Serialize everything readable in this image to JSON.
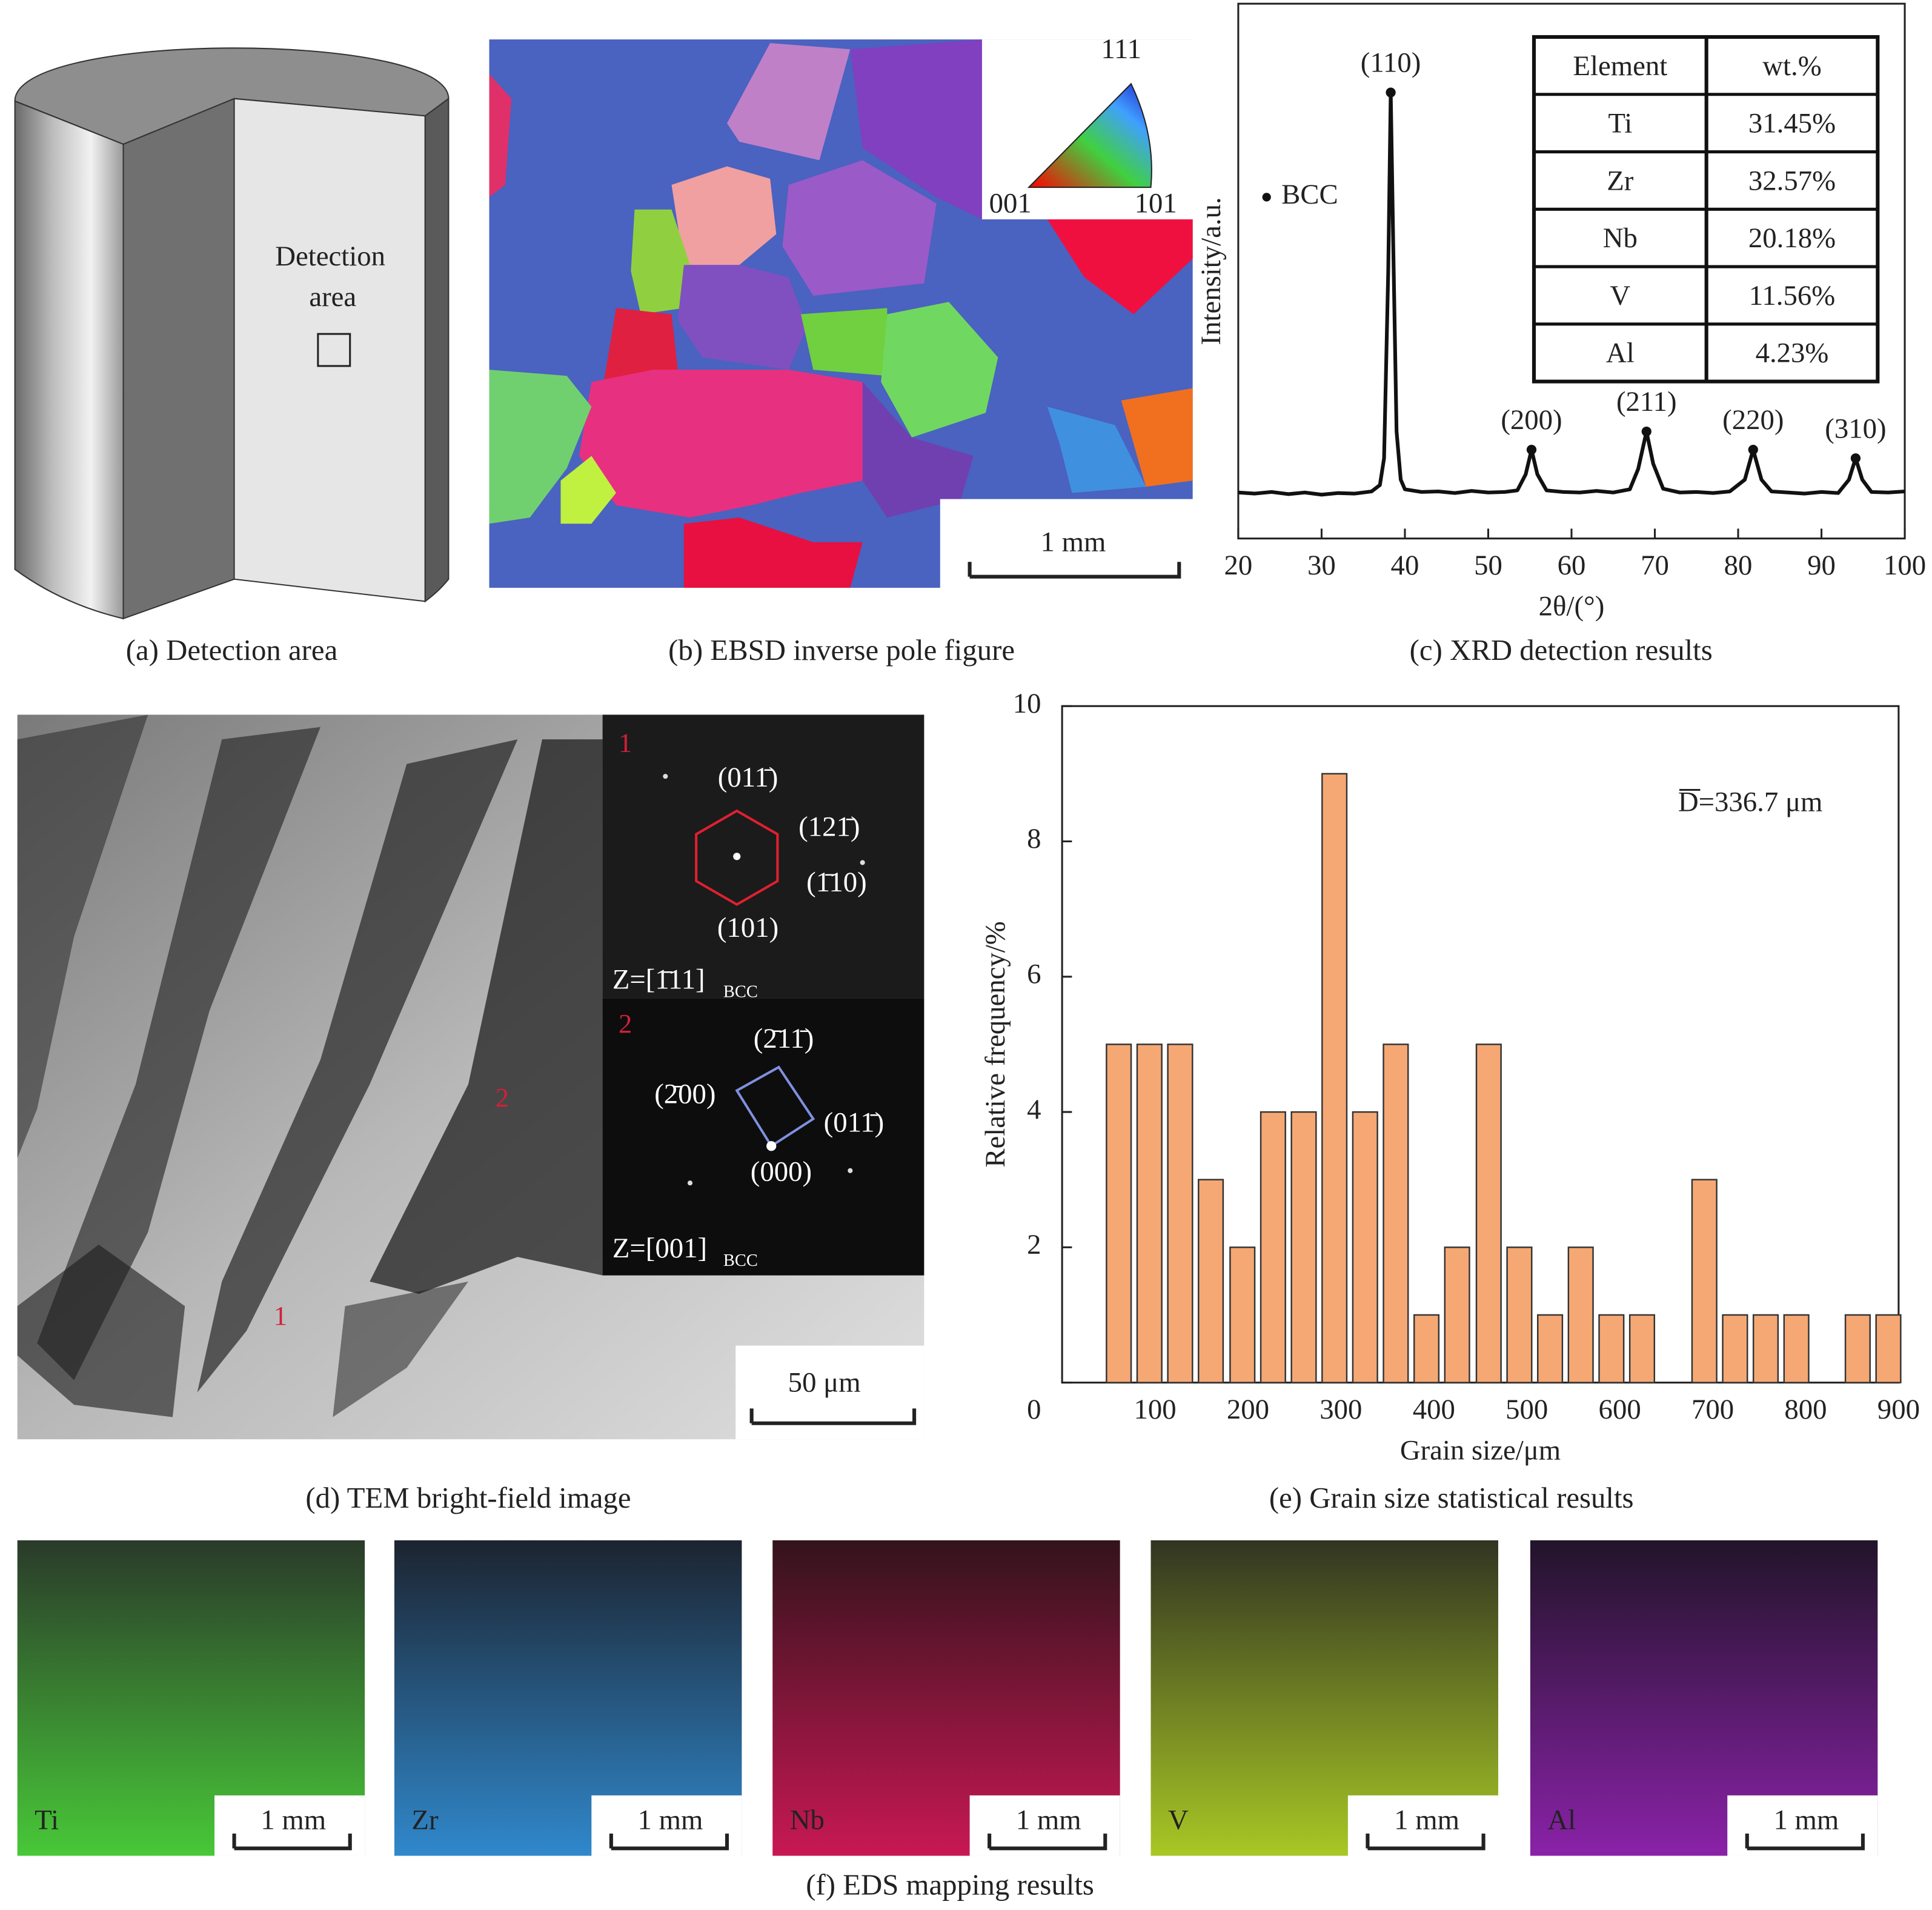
{
  "panel_a": {
    "caption": "(a) Detection area",
    "label_lines": [
      "Detection",
      "area"
    ]
  },
  "panel_b": {
    "caption": "(b) EBSD inverse pole figure",
    "legend": {
      "top": "111",
      "left": "001",
      "right": "101"
    },
    "scale_bar": "1 mm"
  },
  "panel_c_table": {
    "header": [
      "Element",
      "wt.%"
    ],
    "rows": [
      [
        "Ti",
        "31.45%"
      ],
      [
        "Zr",
        "32.57%"
      ],
      [
        "Nb",
        "20.18%"
      ],
      [
        "V",
        "11.56%"
      ],
      [
        "Al",
        "4.23%"
      ]
    ]
  },
  "panel_d": {
    "caption": "(d) TEM bright-field image",
    "image_labels": [
      "1",
      "2"
    ],
    "scale_bar": "50 μm",
    "saed": [
      {
        "number": "1",
        "spots": [
          "(011̄)",
          "(121̄)",
          "(1̄10)",
          "(101)"
        ],
        "zone": "Z=[1̄11]",
        "zone_subscript": "BCC"
      },
      {
        "number": "2",
        "spots": [
          "(2̄11̄)",
          "(2̄00)",
          "(011̄)",
          "(000)"
        ],
        "zone": "Z=[001]",
        "zone_subscript": "BCC"
      }
    ]
  },
  "panel_f": {
    "caption": "(f) EDS mapping results",
    "maps": [
      {
        "element": "Ti",
        "scale_bar": "1 mm"
      },
      {
        "element": "Zr",
        "scale_bar": "1 mm"
      },
      {
        "element": "Nb",
        "scale_bar": "1 mm"
      },
      {
        "element": "V",
        "scale_bar": "1 mm"
      },
      {
        "element": "Al",
        "scale_bar": "1 mm"
      }
    ]
  },
  "chart_data": [
    {
      "type": "line",
      "title": "(c) XRD detection results",
      "xlabel": "2θ/(°)",
      "ylabel": "Intensity/a.u.",
      "xlim": [
        20,
        100
      ],
      "xticks": [
        20,
        30,
        40,
        50,
        60,
        70,
        80,
        90,
        100
      ],
      "ylim": [
        0,
        100
      ],
      "x": [
        20,
        22,
        24,
        26,
        28,
        30,
        32,
        34,
        36,
        37,
        37.5,
        38,
        38.3,
        38.6,
        39,
        39.5,
        40,
        42,
        44,
        46,
        48,
        50,
        52,
        53.5,
        54.5,
        55.2,
        55.9,
        57,
        59,
        61,
        63,
        65,
        67,
        68,
        69,
        69.8,
        71,
        73,
        75,
        77,
        79,
        80.8,
        81.8,
        82.8,
        84,
        86,
        88,
        90,
        92,
        93.3,
        94.1,
        94.9,
        96,
        98,
        100
      ],
      "series": [
        {
          "name": "BCC",
          "color": "#111111",
          "values": [
            8.6,
            8.4,
            8.7,
            8.3,
            8.6,
            8.2,
            8.5,
            8.4,
            8.8,
            10,
            15,
            50,
            83.4,
            55,
            20,
            11,
            9.2,
            8.7,
            8.8,
            8.5,
            8.9,
            8.6,
            8.7,
            9,
            12,
            16.6,
            12,
            9,
            8.7,
            8.6,
            8.9,
            8.6,
            9.2,
            13,
            20,
            14,
            9.3,
            8.6,
            8.7,
            8.5,
            8.8,
            11,
            16.6,
            11,
            8.8,
            8.6,
            8.4,
            8.7,
            8.5,
            11,
            15,
            11,
            8.7,
            8.6,
            8.8
          ]
        }
      ],
      "peaks": [
        {
          "label": "(110)",
          "x": 38.3,
          "y": 83.4
        },
        {
          "label": "(200)",
          "x": 55.2,
          "y": 16.6
        },
        {
          "label": "(211)",
          "x": 69,
          "y": 20
        },
        {
          "label": "(220)",
          "x": 81.8,
          "y": 16.6
        },
        {
          "label": "(310)",
          "x": 94.1,
          "y": 15
        }
      ]
    },
    {
      "type": "histogram",
      "title": "(e) Grain size statistical results",
      "xlabel": "Grain size/μm",
      "ylabel": "Relative frequency/%",
      "xlim": [
        0,
        900
      ],
      "xticks": [
        100,
        200,
        300,
        400,
        500,
        600,
        700,
        800,
        900
      ],
      "ylim": [
        0,
        10
      ],
      "yticks": [
        0,
        2,
        4,
        6,
        8,
        10
      ],
      "annotation": "D=336.7 μm",
      "color": "#f5a874",
      "x": [
        61,
        94,
        127,
        160,
        194,
        227,
        260,
        293,
        326,
        359,
        392,
        425,
        459,
        492,
        525,
        558,
        591,
        624,
        691,
        724,
        757,
        790,
        856,
        889
      ],
      "values": [
        5,
        5,
        5,
        3,
        2,
        4,
        4,
        9,
        4,
        5,
        1,
        2,
        5,
        2,
        1,
        2,
        1,
        1,
        3,
        1,
        1,
        1,
        1,
        1
      ]
    }
  ]
}
